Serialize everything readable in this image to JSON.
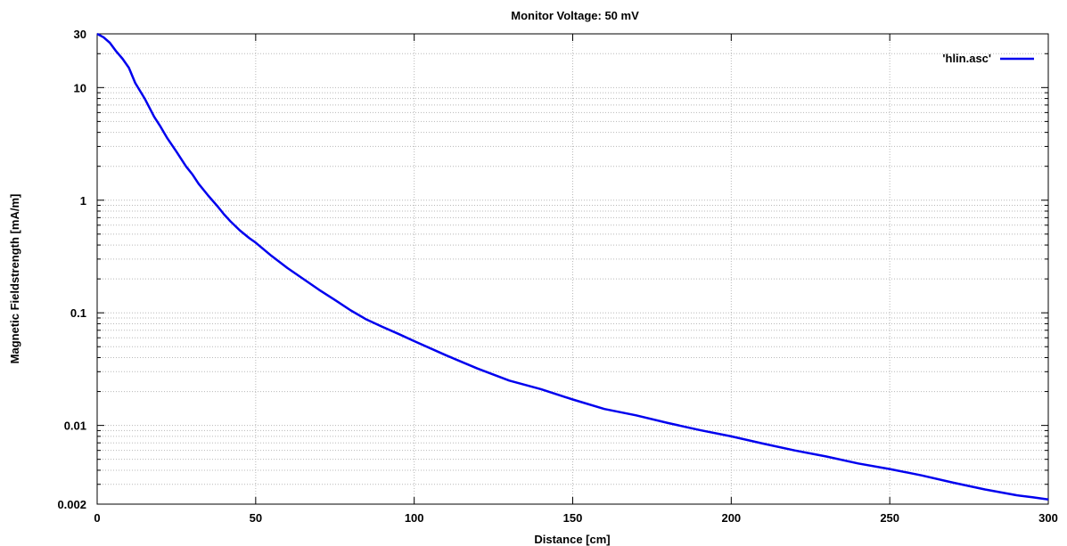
{
  "chart_data": {
    "type": "line",
    "title": "Monitor Voltage: 50 mV",
    "xlabel": "Distance [cm]",
    "ylabel": "Magnetic Fieldstrength [mA/m]",
    "xlim": [
      0,
      300
    ],
    "ylim": [
      0.002,
      30
    ],
    "yscale": "log",
    "grid": true,
    "legend_position": "top-right",
    "x_ticks": [
      0,
      50,
      100,
      150,
      200,
      250,
      300
    ],
    "x_tick_labels": [
      "0",
      "50",
      "100",
      "150",
      "200",
      "250",
      "300"
    ],
    "y_ticks": [
      0.002,
      0.01,
      0.1,
      1,
      10,
      30
    ],
    "y_tick_labels": [
      "0.002",
      "0.01",
      "0.1",
      "1",
      "10",
      "30"
    ],
    "series": [
      {
        "name": "'hlin.asc'",
        "color": "#0000ee",
        "x": [
          0,
          2,
          4,
          6,
          8,
          10,
          12,
          15,
          18,
          20,
          22,
          25,
          28,
          30,
          32,
          35,
          38,
          40,
          42,
          45,
          48,
          50,
          55,
          60,
          65,
          70,
          75,
          80,
          85,
          90,
          95,
          100,
          110,
          120,
          130,
          140,
          150,
          160,
          170,
          180,
          190,
          200,
          210,
          220,
          230,
          240,
          250,
          260,
          270,
          280,
          290,
          295,
          300
        ],
        "y": [
          30,
          28,
          25,
          21,
          18,
          15,
          11,
          8,
          5.5,
          4.5,
          3.6,
          2.7,
          2.0,
          1.7,
          1.4,
          1.1,
          0.88,
          0.75,
          0.65,
          0.54,
          0.46,
          0.42,
          0.32,
          0.25,
          0.2,
          0.16,
          0.13,
          0.105,
          0.087,
          0.075,
          0.065,
          0.056,
          0.042,
          0.032,
          0.025,
          0.021,
          0.017,
          0.014,
          0.0123,
          0.0105,
          0.0091,
          0.008,
          0.0069,
          0.006,
          0.0053,
          0.0046,
          0.0041,
          0.0036,
          0.0031,
          0.0027,
          0.0024,
          0.0023,
          0.0022
        ]
      }
    ]
  }
}
